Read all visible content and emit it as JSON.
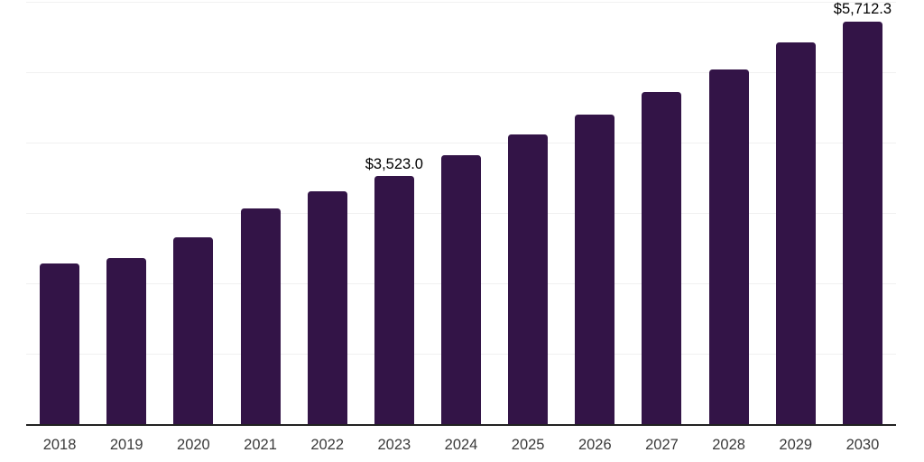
{
  "chart_data": {
    "type": "bar",
    "title": "",
    "xlabel": "",
    "ylabel": "",
    "categories": [
      "2018",
      "2019",
      "2020",
      "2021",
      "2022",
      "2023",
      "2024",
      "2025",
      "2026",
      "2027",
      "2028",
      "2029",
      "2030"
    ],
    "values": [
      2285,
      2360,
      2650,
      3070,
      3305,
      3523.0,
      3825,
      4110,
      4395,
      4720,
      5040,
      5420,
      5712.3
    ],
    "point_labels": [
      null,
      null,
      null,
      null,
      null,
      "$3,523.0",
      null,
      null,
      null,
      null,
      null,
      null,
      "$5,712.3"
    ],
    "ylim": [
      0,
      6000
    ],
    "gridline_values": [
      1000,
      2000,
      3000,
      4000,
      5000,
      6000
    ],
    "grid": true,
    "legend_position": "none",
    "colors": {
      "bar": "#331447",
      "gridline": "#f1f1f1",
      "axis": "#222222",
      "tick_label": "#3a3a3a",
      "data_label": "#000000",
      "background": "#ffffff"
    }
  }
}
